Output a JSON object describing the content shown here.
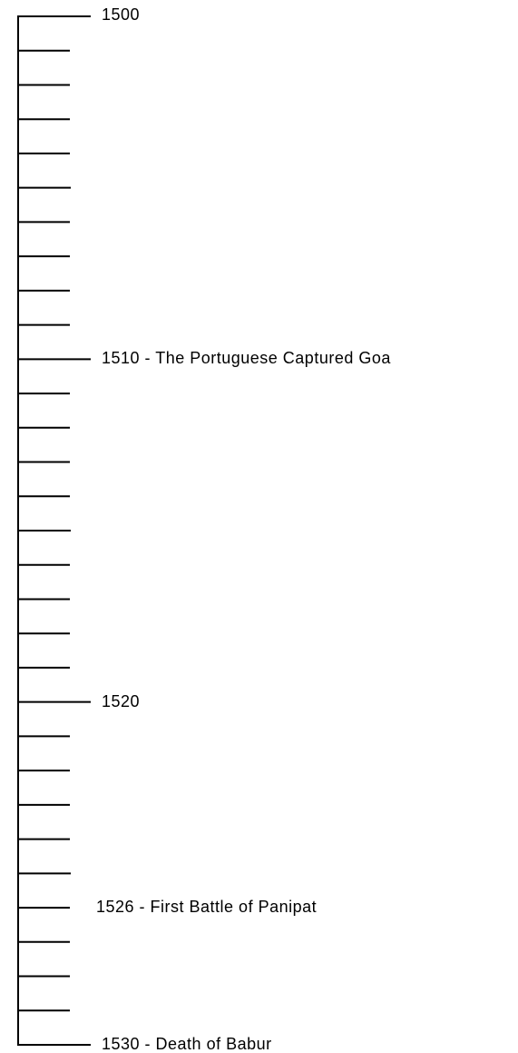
{
  "events": [
    {
      "label": "1500"
    },
    {
      "label": "1510 - The Portuguese Captured Goa"
    },
    {
      "label": "1520"
    },
    {
      "label": "1526 - First Battle of Panipat"
    },
    {
      "label": "1530 - Death of Babur"
    }
  ]
}
